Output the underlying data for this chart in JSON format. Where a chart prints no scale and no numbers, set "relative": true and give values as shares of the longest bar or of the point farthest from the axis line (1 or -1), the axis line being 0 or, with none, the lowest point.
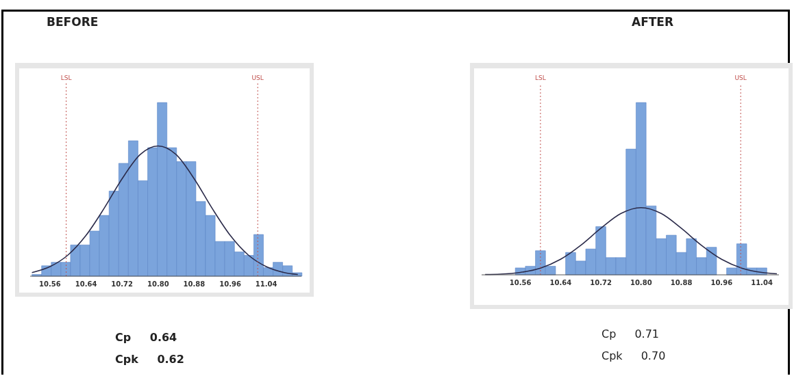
{
  "chart_data": [
    {
      "type": "histogram",
      "title": "BEFORE",
      "relative": true,
      "color": "#7ba4dc",
      "bins": [
        10.52,
        10.5414,
        10.5628,
        10.5842,
        10.6056,
        10.627,
        10.6484,
        10.6698,
        10.6912,
        10.7126,
        10.734,
        10.7554,
        10.7768,
        10.7982,
        10.8196,
        10.841,
        10.8624,
        10.8838,
        10.9052,
        10.9266,
        10.948,
        10.9694,
        10.9908,
        11.0122,
        11.0336,
        11.055,
        11.0764,
        11.0978,
        11.1192
      ],
      "values": [
        0.01,
        0.06,
        0.08,
        0.08,
        0.18,
        0.18,
        0.26,
        0.35,
        0.49,
        0.65,
        0.78,
        0.55,
        0.74,
        1,
        0.74,
        0.66,
        0.66,
        0.43,
        0.35,
        0.2,
        0.2,
        0.14,
        0.12,
        0.24,
        0.05,
        0.08,
        0.06,
        0.02
      ],
      "series": [
        {
          "type": "line",
          "color": "#2b2b4a",
          "x": [
            10.52,
            10.56,
            10.6,
            10.64,
            10.68,
            10.72,
            10.76,
            10.8,
            10.84,
            10.88,
            10.92,
            10.96,
            11.0,
            11.04,
            11.08,
            11.11
          ],
          "values": [
            0.021,
            0.055,
            0.122,
            0.235,
            0.39,
            0.561,
            0.7,
            0.75,
            0.7,
            0.561,
            0.39,
            0.235,
            0.122,
            0.055,
            0.021,
            0.01
          ]
        }
      ],
      "xlim": [
        10.516,
        11.118
      ],
      "xticks": [
        10.56,
        10.64,
        10.72,
        {
          "value": 10.8,
          "label": "10.80"
        },
        10.88,
        10.96,
        11.04
      ],
      "ref_lines": [
        {
          "axis": "x",
          "value": 10.596,
          "label": "LSL",
          "color": "#c0504d",
          "line_style": "dotted"
        },
        {
          "axis": "x",
          "value": 11.021,
          "label": "USL",
          "color": "#c0504d",
          "line_style": "dotted"
        }
      ],
      "annotations": [
        "Cp 0.64",
        "Cpk 0.62"
      ]
    },
    {
      "type": "histogram",
      "title": "AFTER",
      "relative": true,
      "color": "#7ba4dc",
      "bins": [
        10.55,
        10.57,
        10.59,
        10.61,
        10.63,
        10.65,
        10.67,
        10.69,
        10.71,
        10.73,
        10.75,
        10.77,
        10.79,
        10.81,
        10.83,
        10.85,
        10.87,
        10.89,
        10.91,
        10.93,
        10.95,
        10.97,
        10.99,
        11.01,
        11.03,
        11.05
      ],
      "values": [
        0.04,
        0.05,
        0.14,
        0.05,
        0,
        0.13,
        0.08,
        0.15,
        0.28,
        0.1,
        0.1,
        0.73,
        1,
        0.4,
        0.21,
        0.23,
        0.13,
        0.21,
        0.1,
        0.16,
        0,
        0.04,
        0.18,
        0.04,
        0.04
      ],
      "series": [
        {
          "type": "line",
          "color": "#2b2b4a",
          "x": [
            10.49,
            10.52,
            10.56,
            10.6,
            10.64,
            10.68,
            10.72,
            10.76,
            10.8,
            10.84,
            10.88,
            10.92,
            10.96,
            11.0,
            11.04,
            11.07
          ],
          "values": [
            0.002,
            0.004,
            0.014,
            0.039,
            0.09,
            0.171,
            0.27,
            0.356,
            0.39,
            0.356,
            0.27,
            0.171,
            0.09,
            0.039,
            0.014,
            0.006
          ]
        }
      ],
      "xlim": [
        10.483,
        11.074
      ],
      "xticks": [
        10.56,
        10.64,
        10.72,
        {
          "value": 10.8,
          "label": "10.80"
        },
        10.88,
        10.96,
        11.04
      ],
      "ref_lines": [
        {
          "axis": "x",
          "value": 10.6,
          "label": "LSL",
          "color": "#c0504d",
          "line_style": "dotted"
        },
        {
          "axis": "x",
          "value": 10.998,
          "label": "USL",
          "color": "#c0504d",
          "line_style": "dotted"
        }
      ],
      "annotations": [
        "Cp 0.71",
        "Cpk 0.70"
      ]
    }
  ]
}
